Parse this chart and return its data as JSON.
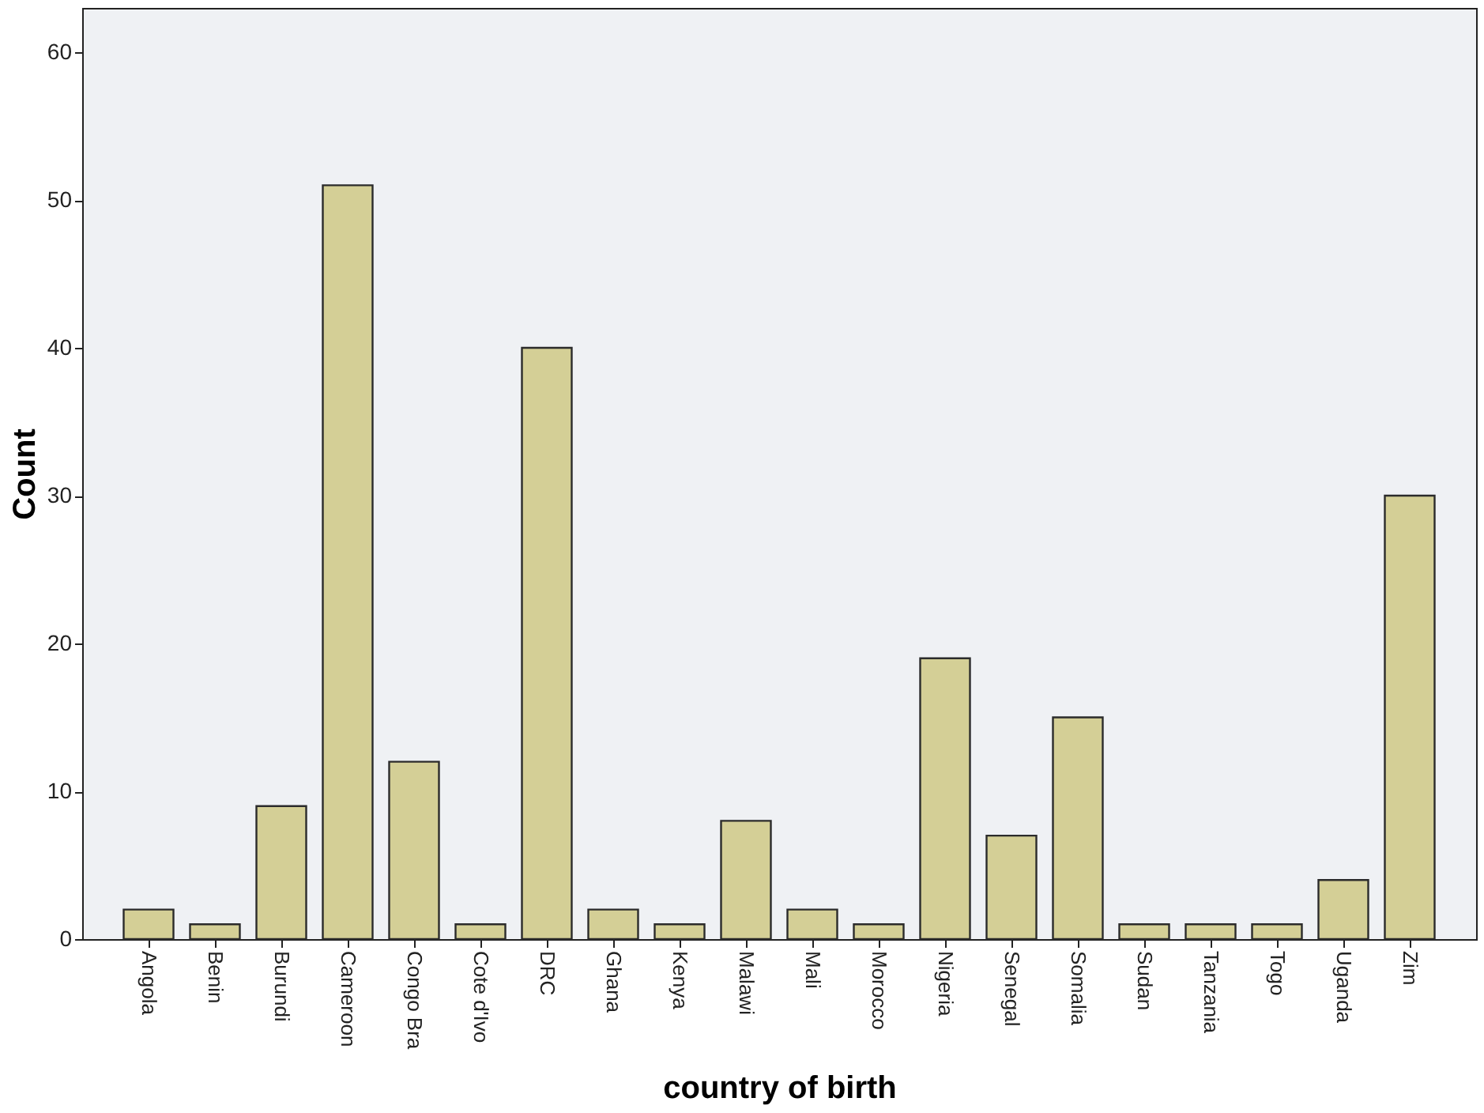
{
  "chart_data": {
    "type": "bar",
    "xlabel": "country of birth",
    "ylabel": "Count",
    "categories": [
      "Angola",
      "Benin",
      "Burundi",
      "Cameroon",
      "Congo Bra",
      "Cote d'Ivo",
      "DRC",
      "Ghana",
      "Kenya",
      "Malawi",
      "Mali",
      "Morocco",
      "Nigeria",
      "Senegal",
      "Somalia",
      "Sudan",
      "Tanzania",
      "Togo",
      "Uganda",
      "Zim"
    ],
    "values": [
      2,
      1,
      9,
      51,
      12,
      1,
      40,
      2,
      1,
      8,
      2,
      1,
      19,
      7,
      15,
      1,
      1,
      1,
      4,
      30
    ],
    "color": "#d4cf96",
    "ylim": [
      0,
      63
    ],
    "yticks": [
      0,
      10,
      20,
      30,
      40,
      50,
      60
    ],
    "grid": false
  }
}
